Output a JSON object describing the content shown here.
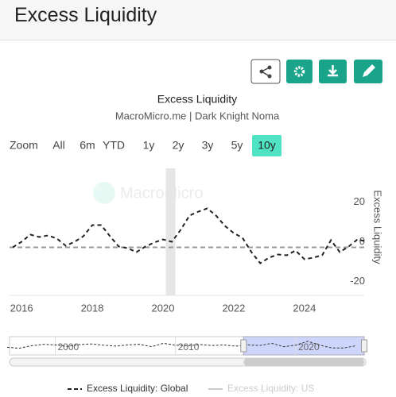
{
  "header": {
    "title": "Excess Liquidity"
  },
  "chart_data": {
    "type": "line",
    "title": "Excess Liquidity",
    "subtitle": "MacroMicro.me | Dark Knight Noma",
    "watermark": "MacroMicro",
    "zoom_label": "Zoom",
    "zoom_buttons": [
      "All",
      "6m",
      "YTD",
      "1y",
      "2y",
      "3y",
      "5y",
      "10y"
    ],
    "zoom_active": "10y",
    "y_axis_label": "Excess Liquidity",
    "x": [
      2015.75,
      2016.0,
      2016.25,
      2016.5,
      2016.75,
      2017.0,
      2017.25,
      2017.5,
      2017.75,
      2018.0,
      2018.25,
      2018.5,
      2018.75,
      2019.0,
      2019.25,
      2019.5,
      2019.75,
      2020.0,
      2020.25,
      2020.5,
      2020.75,
      2021.0,
      2021.25,
      2021.5,
      2021.75,
      2022.0,
      2022.25,
      2022.5,
      2022.75,
      2023.0,
      2023.25,
      2023.5,
      2023.75,
      2024.0,
      2024.25,
      2024.5,
      2024.75,
      2025.0,
      2025.25,
      2025.5,
      2025.69
    ],
    "series": [
      {
        "name": "Excess Liquidity: Global",
        "color": "#222222",
        "dashed": true,
        "visible": true,
        "values": [
          -2.8,
          0,
          3.6,
          2.4,
          3.2,
          1.6,
          -2,
          0,
          2.8,
          8.4,
          8.4,
          2.8,
          -2.4,
          -3.2,
          -5.2,
          -2.4,
          -0.4,
          1.2,
          0,
          6,
          13.2,
          15.2,
          16.8,
          13.2,
          8,
          4.4,
          2,
          -5.2,
          -10.8,
          -8,
          -6.4,
          -6.8,
          -4.4,
          -8.8,
          -8,
          -6.8,
          0.8,
          -5.2,
          -2.4,
          1.2,
          0.4
        ]
      },
      {
        "name": "Excess Liquidity: US",
        "color": "#cccccc",
        "visible": false
      }
    ],
    "xlim": [
      2015.66,
      2025.69
    ],
    "xticks": [
      2016,
      2018,
      2020,
      2022,
      2024
    ],
    "ylim": [
      -24,
      37
    ],
    "yticks": [
      20,
      0,
      -20
    ],
    "reference_line": -2.8,
    "shaded_band": [
      2020.08,
      2020.35
    ],
    "navigator": {
      "x": [
        1996,
        1997,
        1998,
        1999,
        2000,
        2001,
        2002,
        2003,
        2004,
        2005,
        2006,
        2007,
        2008,
        2009,
        2010,
        2011,
        2012,
        2013,
        2014,
        2015,
        2016,
        2017,
        2018,
        2019,
        2020,
        2021,
        2022,
        2023,
        2024,
        2025
      ],
      "values": [
        -5,
        -8,
        0,
        5,
        3,
        -2,
        4,
        6,
        2,
        -1,
        3,
        5,
        -3,
        8,
        2,
        0,
        4,
        1,
        3,
        -1,
        3,
        1,
        8,
        -3,
        2,
        15,
        2,
        -7,
        -7,
        0
      ],
      "xlim": [
        1996.2,
        2025.69
      ],
      "ylim": [
        -30,
        30
      ],
      "xticks": [
        2000,
        2010,
        2020
      ],
      "selection": [
        2015.66,
        2025.69
      ]
    }
  }
}
